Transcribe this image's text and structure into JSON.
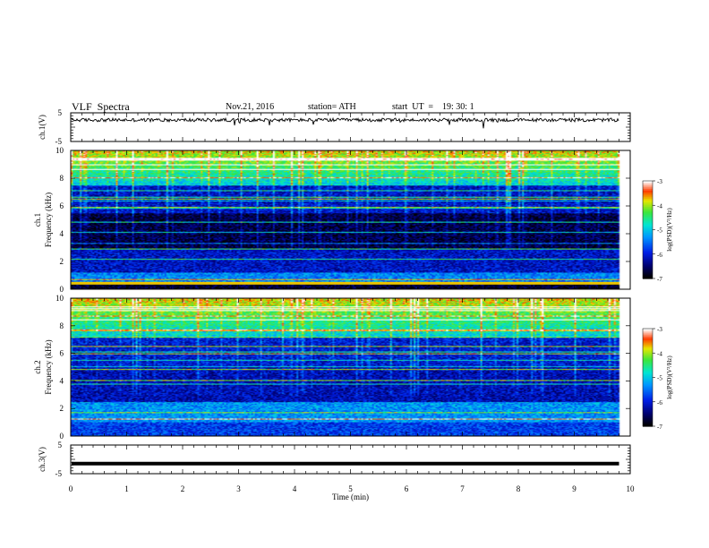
{
  "header": {
    "title": "VLF  Spectra",
    "date": "Nov.21, 2016",
    "station": "station= ATH",
    "start": "start  UT  =    19: 30: 1"
  },
  "chart_data": [
    {
      "type": "line",
      "panel": "ch1-waveform",
      "ylabel": "ch.1(V)",
      "ylim": [
        -5,
        5
      ],
      "yticks": [
        "5",
        "-5"
      ],
      "x_extent_min": [
        0,
        9.8
      ],
      "baseline_value_v": 2.5,
      "noise_amplitude_v": 0.6,
      "series_color": "#000000"
    },
    {
      "type": "heatmap",
      "panel": "ch1-spectrogram",
      "ylabel": "ch.1\nFrequency  (kHz)",
      "ylim": [
        0,
        10
      ],
      "yticks": [
        "0",
        "2",
        "4",
        "6",
        "8",
        "10"
      ],
      "colorbar": {
        "label": "log(PSD)(V²/Hz)",
        "range": [
          -7,
          -3
        ],
        "ticks": [
          "-3",
          "-4",
          "-5",
          "-6",
          "-7"
        ]
      }
    },
    {
      "type": "heatmap",
      "panel": "ch2-spectrogram",
      "ylabel": "ch.2\nFrequency  (kHz)",
      "ylim": [
        0,
        10
      ],
      "yticks": [
        "0",
        "2",
        "4",
        "6",
        "8",
        "10"
      ],
      "colorbar": {
        "label": "log(PSD)(V²/Hz)",
        "range": [
          -7,
          -3
        ],
        "ticks": [
          "-3",
          "-4",
          "-5",
          "-6",
          "-7"
        ]
      }
    },
    {
      "type": "line",
      "panel": "ch3-waveform",
      "ylabel": "ch.3(V)",
      "ylim": [
        -5,
        5
      ],
      "yticks": [
        "5",
        "-5"
      ],
      "x_extent_min": [
        0,
        9.8
      ],
      "baseline_value_v": -1.5,
      "series_color": "#000000"
    }
  ],
  "xaxis": {
    "label": "Time  (min)",
    "range": [
      0,
      10
    ],
    "ticks": [
      "0",
      "1",
      "2",
      "3",
      "4",
      "5",
      "6",
      "7",
      "8",
      "9",
      "10"
    ]
  }
}
